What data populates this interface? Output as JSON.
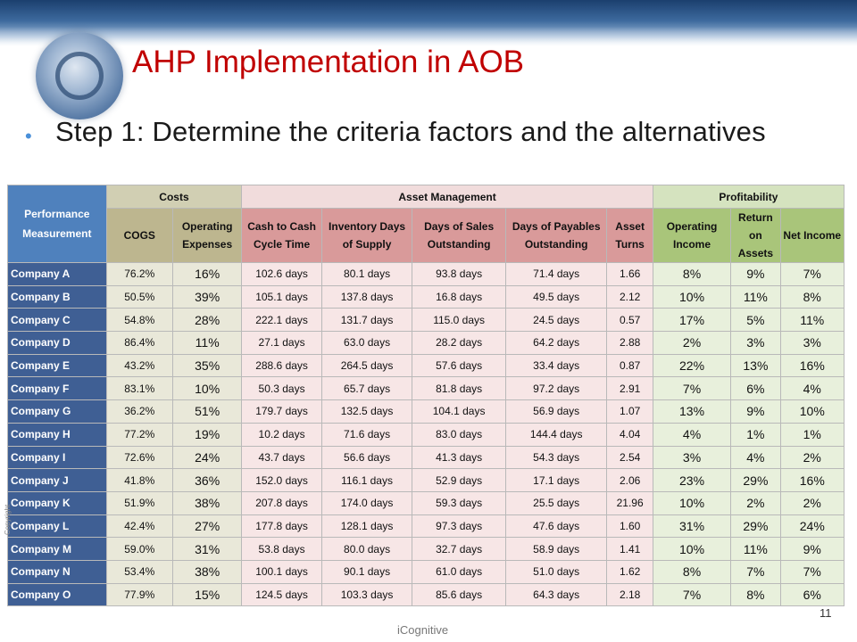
{
  "slide": {
    "title": "AHP Implementation in AOB",
    "bullet": "Step 1: Determine the criteria factors and the alternatives",
    "footer": "iCognitive",
    "page_number": "11",
    "copyright": "Copyright"
  },
  "table": {
    "corner_header": "Performance Measurement",
    "groups": [
      "Costs",
      "Asset Management",
      "Profitability"
    ],
    "columns": [
      "COGS",
      "Operating Expenses",
      "Cash to Cash Cycle Time",
      "Inventory Days of Supply",
      "Days of Sales Outstanding",
      "Days of Payables Outstanding",
      "Asset Turns",
      "Operating Income",
      "Return on Assets",
      "Net Income"
    ],
    "rows": [
      {
        "company": "Company A",
        "values": [
          "76.2%",
          "16%",
          "102.6 days",
          "80.1 days",
          "93.8 days",
          "71.4 days",
          "1.66",
          "8%",
          "9%",
          "7%"
        ]
      },
      {
        "company": "Company B",
        "values": [
          "50.5%",
          "39%",
          "105.1 days",
          "137.8 days",
          "16.8 days",
          "49.5 days",
          "2.12",
          "10%",
          "11%",
          "8%"
        ]
      },
      {
        "company": "Company C",
        "values": [
          "54.8%",
          "28%",
          "222.1 days",
          "131.7 days",
          "115.0 days",
          "24.5 days",
          "0.57",
          "17%",
          "5%",
          "11%"
        ]
      },
      {
        "company": "Company D",
        "values": [
          "86.4%",
          "11%",
          "27.1 days",
          "63.0 days",
          "28.2 days",
          "64.2 days",
          "2.88",
          "2%",
          "3%",
          "3%"
        ]
      },
      {
        "company": "Company E",
        "values": [
          "43.2%",
          "35%",
          "288.6 days",
          "264.5 days",
          "57.6 days",
          "33.4 days",
          "0.87",
          "22%",
          "13%",
          "16%"
        ]
      },
      {
        "company": "Company F",
        "values": [
          "83.1%",
          "10%",
          "50.3 days",
          "65.7 days",
          "81.8 days",
          "97.2 days",
          "2.91",
          "7%",
          "6%",
          "4%"
        ]
      },
      {
        "company": "Company G",
        "values": [
          "36.2%",
          "51%",
          "179.7 days",
          "132.5 days",
          "104.1 days",
          "56.9 days",
          "1.07",
          "13%",
          "9%",
          "10%"
        ]
      },
      {
        "company": "Company H",
        "values": [
          "77.2%",
          "19%",
          "10.2 days",
          "71.6 days",
          "83.0 days",
          "144.4 days",
          "4.04",
          "4%",
          "1%",
          "1%"
        ]
      },
      {
        "company": "Company I",
        "values": [
          "72.6%",
          "24%",
          "43.7 days",
          "56.6 days",
          "41.3 days",
          "54.3 days",
          "2.54",
          "3%",
          "4%",
          "2%"
        ]
      },
      {
        "company": "Company J",
        "values": [
          "41.8%",
          "36%",
          "152.0 days",
          "116.1 days",
          "52.9 days",
          "17.1 days",
          "2.06",
          "23%",
          "29%",
          "16%"
        ]
      },
      {
        "company": "Company K",
        "values": [
          "51.9%",
          "38%",
          "207.8 days",
          "174.0 days",
          "59.3 days",
          "25.5 days",
          "21.96",
          "10%",
          "2%",
          "2%"
        ]
      },
      {
        "company": "Company L",
        "values": [
          "42.4%",
          "27%",
          "177.8 days",
          "128.1 days",
          "97.3 days",
          "47.6 days",
          "1.60",
          "31%",
          "29%",
          "24%"
        ]
      },
      {
        "company": "Company M",
        "values": [
          "59.0%",
          "31%",
          "53.8 days",
          "80.0 days",
          "32.7 days",
          "58.9 days",
          "1.41",
          "10%",
          "11%",
          "9%"
        ]
      },
      {
        "company": "Company N",
        "values": [
          "53.4%",
          "38%",
          "100.1 days",
          "90.1 days",
          "61.0 days",
          "51.0 days",
          "1.62",
          "8%",
          "7%",
          "7%"
        ]
      },
      {
        "company": "Company O",
        "values": [
          "77.9%",
          "15%",
          "124.5 days",
          "103.3 days",
          "85.6 days",
          "64.3 days",
          "2.18",
          "7%",
          "8%",
          "6%"
        ]
      }
    ]
  },
  "colors": {
    "title": "#c00000",
    "company_column": "#3f5f94",
    "costs": "#bdb68f",
    "asset_management": "#d99a9a",
    "profitability": "#a9c57a"
  }
}
